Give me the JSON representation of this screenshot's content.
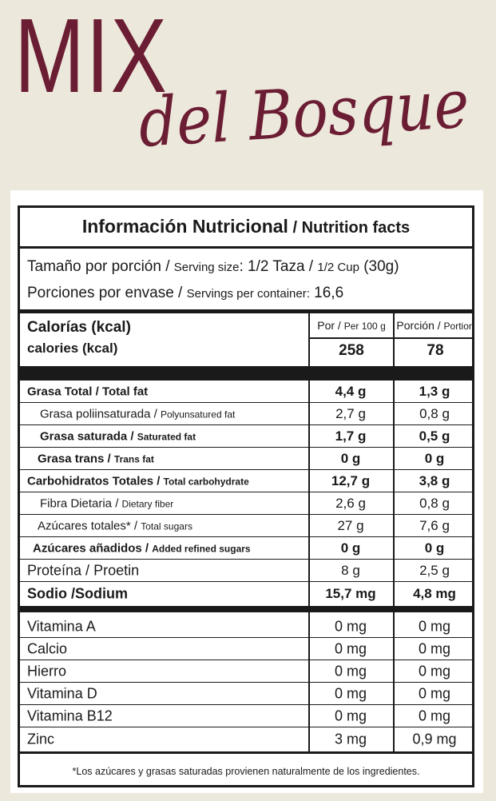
{
  "brand": {
    "line1": "MIX",
    "line2": "del Bosque",
    "color": "#6b1d33"
  },
  "label": {
    "title_es": "Información Nutricional",
    "title_sep": " / ",
    "title_en": "Nutrition facts",
    "serving_size": {
      "es": "Tamaño por porción",
      "sep": " / ",
      "en": "Serving size",
      "value_es": ": 1/2 Taza / ",
      "value_en_small": "1/2 Cup",
      "value_g": " (30g)"
    },
    "servings": {
      "es": "Porciones por envase",
      "sep": " / ",
      "en": "Servings per container:",
      "value": " 16,6"
    },
    "calories": {
      "es": "Calorías (kcal)",
      "en": "calories (kcal)",
      "col1_es": "Por / ",
      "col1_en": "Per 100 g",
      "col2_es": "Porción / ",
      "col2_en": "Portion",
      "per100": "258",
      "portion": "78"
    },
    "nutrients": [
      {
        "es": "Grasa Total",
        "sep": " / ",
        "en": "Total fat",
        "per100": "4,4 g",
        "portion": "1,3 g"
      },
      {
        "es": "Grasa poliinsaturada",
        "sep": " / ",
        "en": "Polyunsatured fat",
        "per100": "2,7 g",
        "portion": "0,8 g"
      },
      {
        "es": "Grasa saturada",
        "sep": " / ",
        "en": "Saturated fat",
        "per100": "1,7 g",
        "portion": "0,5 g"
      },
      {
        "es": "Grasa trans",
        "sep": " / ",
        "en": "Trans fat",
        "per100": "0 g",
        "portion": "0 g"
      },
      {
        "es": "Carbohidratos Totales",
        "sep": " / ",
        "en": "Total carbohydrate",
        "per100": "12,7 g",
        "portion": "3,8 g"
      },
      {
        "es": "Fibra Dietaria",
        "sep": " / ",
        "en": "Dietary fiber",
        "per100": "2,6 g",
        "portion": "0,8 g"
      },
      {
        "es": "Azúcares totales*",
        "sep": " / ",
        "en": "Total sugars",
        "per100": "27 g",
        "portion": "7,6 g"
      },
      {
        "es": "Azúcares añadidos",
        "sep": " / ",
        "en": "Added refined sugars",
        "per100": "0 g",
        "portion": "0 g"
      },
      {
        "es": "Proteína",
        "sep": " / ",
        "en": "Proetin",
        "per100": "8 g",
        "portion": "2,5 g"
      },
      {
        "es": "Sodio /",
        "sep": "",
        "en": "Sodium",
        "per100": "15,7 mg",
        "portion": "4,8 mg"
      }
    ],
    "vitamins": [
      {
        "name": "Vitamina A",
        "per100": "0 mg",
        "portion": "0 mg"
      },
      {
        "name": "Calcio",
        "per100": "0 mg",
        "portion": "0 mg"
      },
      {
        "name": "Hierro",
        "per100": "0 mg",
        "portion": "0 mg"
      },
      {
        "name": "Vitamina D",
        "per100": "0 mg",
        "portion": "0 mg"
      },
      {
        "name": "Vitamina B12",
        "per100": "0 mg",
        "portion": "0 mg"
      },
      {
        "name": "Zinc",
        "per100": "3 mg",
        "portion": "0,9 mg"
      }
    ],
    "footnote": "*Los azúcares y grasas saturadas provienen naturalmente de los ingredientes."
  }
}
